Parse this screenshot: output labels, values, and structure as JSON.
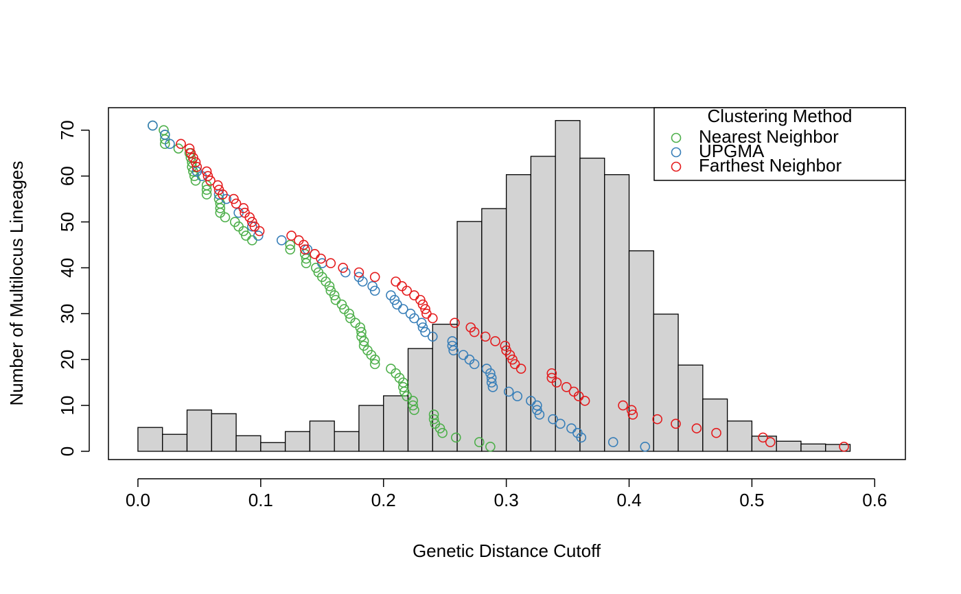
{
  "chart_data": [
    {
      "type": "histogram",
      "color": "#d3d3d3",
      "bins": [
        0,
        0.02,
        0.04,
        0.06,
        0.08,
        0.1,
        0.12,
        0.14,
        0.16,
        0.18,
        0.2,
        0.22,
        0.24,
        0.26,
        0.28,
        0.3,
        0.32,
        0.34,
        0.36,
        0.38,
        0.4,
        0.42,
        0.44,
        0.46,
        0.48,
        0.5,
        0.52,
        0.54,
        0.56,
        0.58
      ],
      "values": [
        5.2,
        3.7,
        9.0,
        8.2,
        3.4,
        1.9,
        4.3,
        6.6,
        4.3,
        10.0,
        12.1,
        22.4,
        27.7,
        50.1,
        52.9,
        60.3,
        64.3,
        72.1,
        63.9,
        60.3,
        43.7,
        29.9,
        18.8,
        11.4,
        6.6,
        3.3,
        2.2,
        1.6,
        1.5
      ]
    },
    {
      "type": "scatter",
      "xlabel": "Genetic Distance Cutoff",
      "ylabel": "Number of Multilocus Lineages",
      "xlim": [
        -0.024,
        0.625
      ],
      "ylim": [
        -1.8,
        74.9
      ],
      "xticks": [
        {
          "value": 0,
          "label": "0.0"
        },
        0.1,
        0.2,
        0.3,
        0.4,
        0.5,
        0.6
      ],
      "yticks": [
        0,
        10,
        20,
        30,
        40,
        50,
        60,
        70
      ],
      "legend": "top-right",
      "legend_title": "Clustering Method",
      "series": [
        {
          "name": "Nearest Neighbor",
          "color": "#4daf4a",
          "x": [
            0.012,
            0.021,
            0.022,
            0.022,
            0.022,
            0.033,
            0.042,
            0.043,
            0.044,
            0.044,
            0.045,
            0.046,
            0.047,
            0.056,
            0.056,
            0.056,
            0.066,
            0.067,
            0.067,
            0.067,
            0.071,
            0.079,
            0.082,
            0.086,
            0.088,
            0.093,
            0.124,
            0.124,
            0.136,
            0.137,
            0.137,
            0.145,
            0.147,
            0.15,
            0.153,
            0.156,
            0.157,
            0.16,
            0.161,
            0.166,
            0.168,
            0.172,
            0.173,
            0.177,
            0.181,
            0.182,
            0.182,
            0.184,
            0.184,
            0.187,
            0.19,
            0.193,
            0.193,
            0.206,
            0.21,
            0.213,
            0.216,
            0.216,
            0.217,
            0.219,
            0.224,
            0.224,
            0.225,
            0.241,
            0.241,
            0.242,
            0.246,
            0.248,
            0.259,
            0.278,
            0.287
          ],
          "values": [
            71,
            70,
            69,
            68,
            67,
            66,
            65,
            64,
            63,
            62,
            61,
            60,
            59,
            58,
            57,
            56,
            55,
            54,
            53,
            52,
            51,
            50,
            49,
            48,
            47,
            46,
            45,
            44,
            43,
            42,
            41,
            40,
            39,
            38,
            37,
            36,
            35,
            34,
            33,
            32,
            31,
            30,
            29,
            28,
            27,
            26,
            25,
            24,
            23,
            22,
            21,
            20,
            19,
            18,
            17,
            16,
            15,
            14,
            13,
            12,
            11,
            10,
            9,
            8,
            7,
            6,
            5,
            4,
            3,
            2,
            1
          ]
        },
        {
          "name": "UPGMA",
          "color": "#377eb8",
          "x": [
            0.012,
            0.022,
            0.026,
            0.048,
            0.052,
            0.066,
            0.072,
            0.082,
            0.093,
            0.098,
            0.117,
            0.138,
            0.15,
            0.169,
            0.18,
            0.183,
            0.191,
            0.193,
            0.206,
            0.209,
            0.211,
            0.216,
            0.222,
            0.225,
            0.231,
            0.232,
            0.234,
            0.24,
            0.256,
            0.256,
            0.257,
            0.265,
            0.27,
            0.274,
            0.284,
            0.287,
            0.288,
            0.288,
            0.289,
            0.302,
            0.309,
            0.32,
            0.325,
            0.325,
            0.327,
            0.338,
            0.344,
            0.353,
            0.358,
            0.361,
            0.387,
            0.413
          ],
          "values": [
            71,
            69,
            67,
            61,
            60,
            56,
            55,
            52,
            49,
            47,
            46,
            44,
            41,
            39,
            38,
            37,
            36,
            35,
            34,
            33,
            32,
            31,
            30,
            29,
            28,
            27,
            26,
            25,
            24,
            23,
            22,
            21,
            20,
            19,
            18,
            17,
            16,
            15,
            14,
            13,
            12,
            11,
            10,
            9,
            8,
            7,
            6,
            5,
            4,
            3,
            2,
            1
          ]
        },
        {
          "name": "Farthest Neighbor",
          "color": "#e41a1c",
          "x": [
            0.035,
            0.042,
            0.043,
            0.045,
            0.047,
            0.048,
            0.056,
            0.057,
            0.059,
            0.065,
            0.066,
            0.069,
            0.078,
            0.08,
            0.086,
            0.087,
            0.091,
            0.093,
            0.095,
            0.099,
            0.125,
            0.131,
            0.135,
            0.136,
            0.144,
            0.149,
            0.157,
            0.167,
            0.18,
            0.193,
            0.21,
            0.215,
            0.219,
            0.225,
            0.23,
            0.232,
            0.234,
            0.235,
            0.24,
            0.258,
            0.271,
            0.274,
            0.283,
            0.291,
            0.299,
            0.3,
            0.303,
            0.305,
            0.307,
            0.312,
            0.337,
            0.337,
            0.341,
            0.349,
            0.355,
            0.359,
            0.364,
            0.395,
            0.402,
            0.403,
            0.423,
            0.438,
            0.455,
            0.471,
            0.509,
            0.515,
            0.575
          ],
          "values": [
            67,
            66,
            65,
            64,
            63,
            62,
            61,
            60,
            59,
            58,
            57,
            56,
            55,
            54,
            53,
            52,
            51,
            50,
            49,
            48,
            47,
            46,
            45,
            44,
            43,
            42,
            41,
            40,
            39,
            38,
            37,
            36,
            35,
            34,
            33,
            32,
            31,
            30,
            29,
            28,
            27,
            26,
            25,
            24,
            23,
            22,
            21,
            20,
            19,
            18,
            17,
            16,
            15,
            14,
            13,
            12,
            11,
            10,
            9,
            8,
            7,
            6,
            5,
            4,
            3,
            2,
            1
          ]
        }
      ]
    }
  ]
}
